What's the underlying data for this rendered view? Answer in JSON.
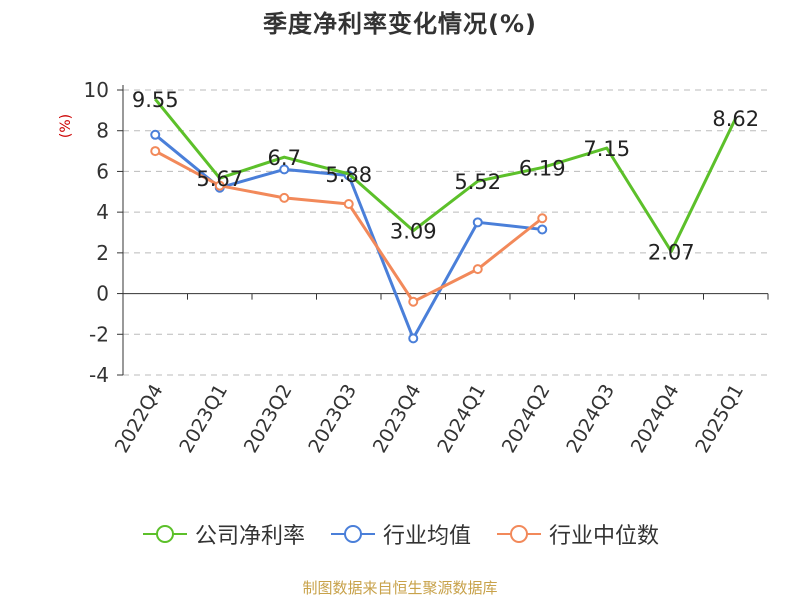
{
  "chart_data": {
    "type": "line",
    "title": "季度净利率变化情况(%)",
    "ylabel": "(%)",
    "xlabel": "",
    "ylim": [
      -4,
      10
    ],
    "yticks": [
      -4,
      -2,
      0,
      2,
      4,
      6,
      8,
      10
    ],
    "grid": true,
    "legend_position": "bottom",
    "categories": [
      "2022Q4",
      "2023Q1",
      "2023Q2",
      "2023Q3",
      "2023Q4",
      "2024Q1",
      "2024Q2",
      "2024Q3",
      "2024Q4",
      "2025Q1"
    ],
    "series": [
      {
        "name": "公司净利率",
        "color": "#5cc02a",
        "values": [
          9.55,
          5.67,
          6.7,
          5.88,
          3.09,
          5.52,
          6.19,
          7.15,
          2.07,
          8.62
        ],
        "labels": [
          "9.55",
          "5.67",
          "6.7",
          "5.88",
          "3.09",
          "5.52",
          "6.19",
          "7.15",
          "2.07",
          "8.62"
        ]
      },
      {
        "name": "行业均值",
        "color": "#4a7fd9",
        "values": [
          7.8,
          5.2,
          6.1,
          5.8,
          -2.2,
          3.5,
          3.15,
          null,
          null,
          null
        ]
      },
      {
        "name": "行业中位数",
        "color": "#f2895a",
        "values": [
          7.0,
          5.3,
          4.7,
          4.4,
          -0.4,
          1.2,
          3.7,
          null,
          null,
          null
        ]
      }
    ]
  },
  "source": "制图数据来自恒生聚源数据库"
}
